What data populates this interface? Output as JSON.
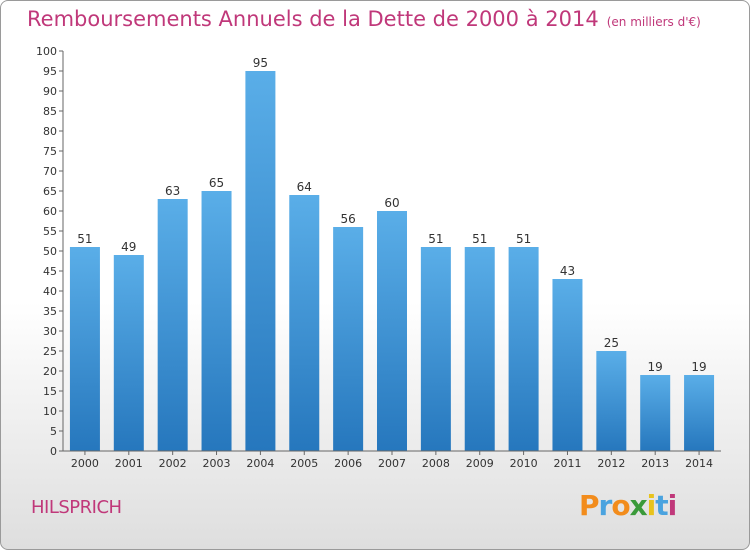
{
  "header": {
    "title": "Remboursements Annuels de la Dette de 2000 à 2014",
    "unit": "(en milliers d'€)"
  },
  "footer": {
    "location": "HILSPRICH",
    "logo_text": "Proxiti",
    "logo_colors": [
      "#f28c1c",
      "#4aa3df",
      "#f28c1c",
      "#3a9a3a",
      "#e8c31c",
      "#4aa3df",
      "#c0387a"
    ]
  },
  "chart_data": {
    "type": "bar",
    "title": "Remboursements Annuels de la Dette de 2000 à 2014",
    "subtitle": "(en milliers d'€)",
    "categories": [
      "2000",
      "2001",
      "2002",
      "2003",
      "2004",
      "2005",
      "2006",
      "2007",
      "2008",
      "2009",
      "2010",
      "2011",
      "2012",
      "2013",
      "2014"
    ],
    "values": [
      51,
      49,
      63,
      65,
      95,
      64,
      56,
      60,
      51,
      51,
      51,
      43,
      25,
      19,
      19
    ],
    "ylim": [
      0,
      100
    ],
    "ytick_step": 5,
    "grid": false,
    "bar_color_top": "#5aaee8",
    "bar_color_bottom": "#2677bd",
    "axis_color": "#666666"
  }
}
